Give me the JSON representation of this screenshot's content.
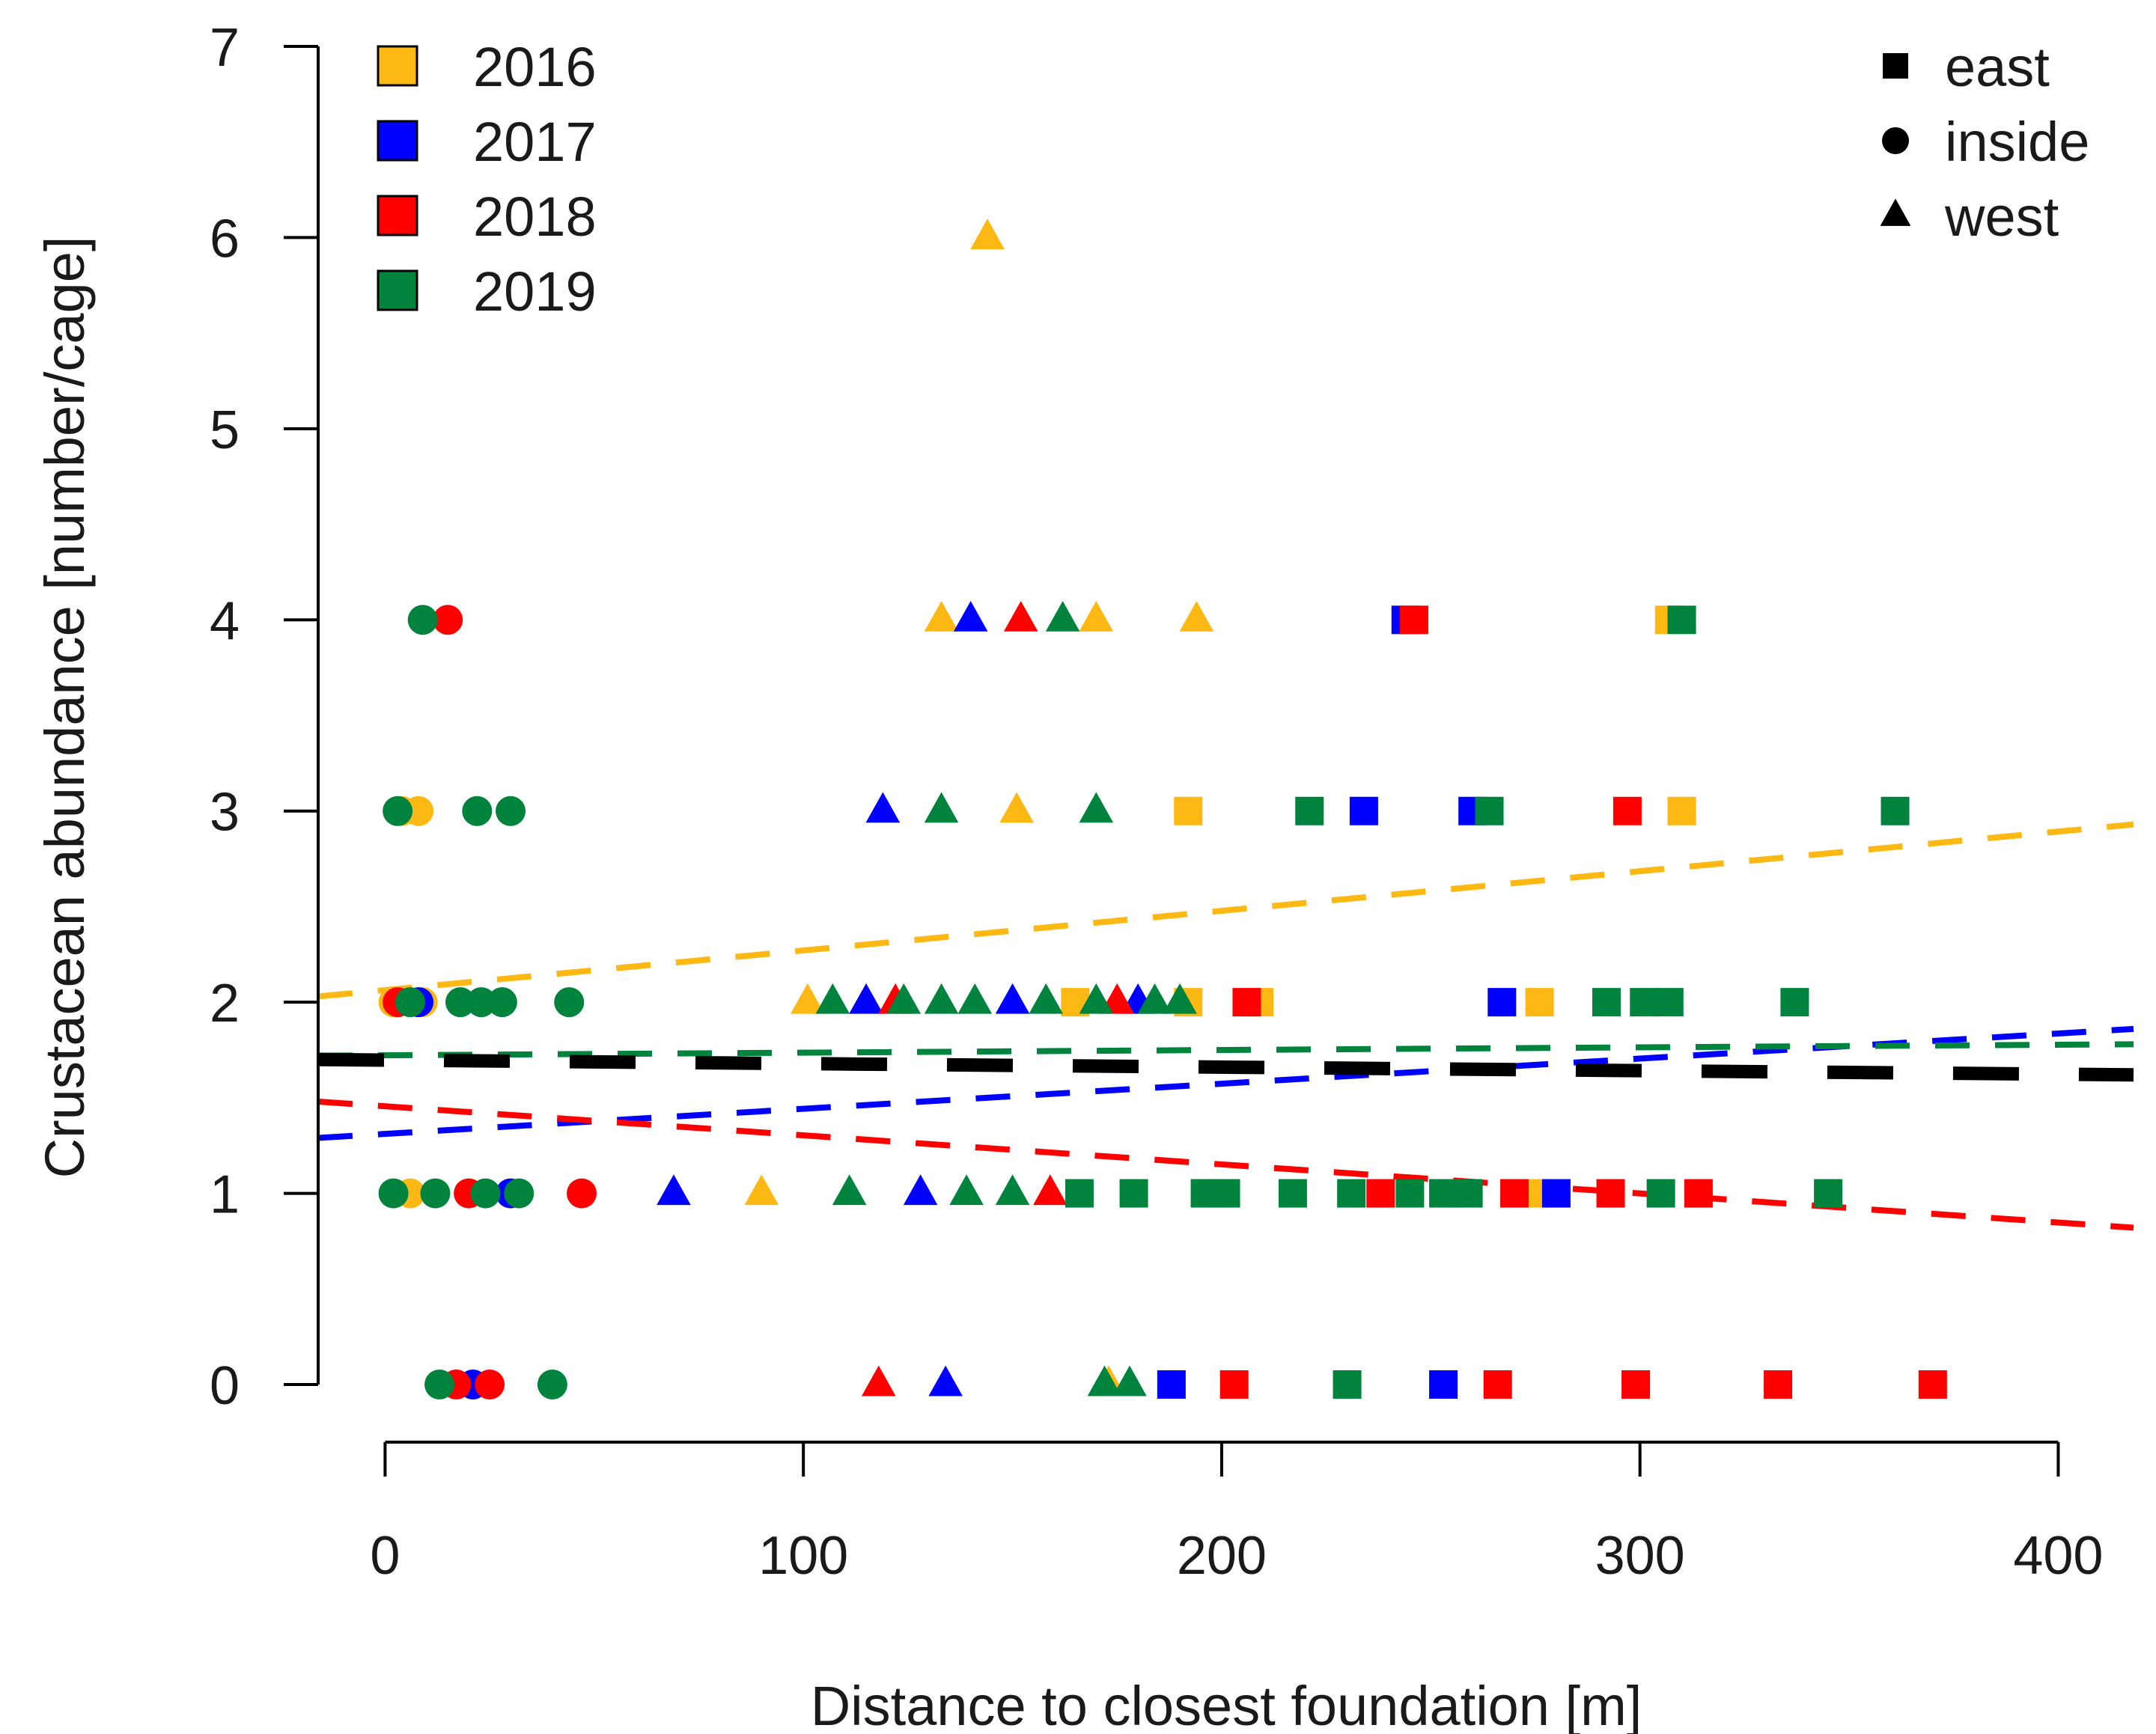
{
  "chart_data": {
    "type": "scatter",
    "xlabel": "Distance to closest foundation [m]",
    "ylabel": "Crustacean abundance [number/cage]",
    "xlim": [
      -16,
      418
    ],
    "ylim": [
      0,
      7
    ],
    "x_ticks": [
      "0",
      "100",
      "200",
      "300",
      "400"
    ],
    "y_ticks": [
      "0",
      "1",
      "2",
      "3",
      "4",
      "5",
      "6",
      "7"
    ],
    "colors": {
      "2016": "#FDB813",
      "2017": "#0000FF",
      "2018": "#FF0000",
      "2019": "#00843D",
      "overall": "#000000"
    },
    "legend_years": [
      {
        "label": "2016",
        "color": "#FDB813"
      },
      {
        "label": "2017",
        "color": "#0000FF"
      },
      {
        "label": "2018",
        "color": "#FF0000"
      },
      {
        "label": "2019",
        "color": "#00843D"
      }
    ],
    "legend_positions": [
      {
        "label": "east",
        "shape": "square"
      },
      {
        "label": "inside",
        "shape": "circle"
      },
      {
        "label": "west",
        "shape": "triangle"
      }
    ],
    "series": [
      {
        "name": "2016",
        "color": "#FDB813",
        "points": [
          {
            "x": 144,
            "y": 6,
            "shape": "triangle"
          },
          {
            "x": 133,
            "y": 4,
            "shape": "triangle"
          },
          {
            "x": 170,
            "y": 4,
            "shape": "triangle"
          },
          {
            "x": 194,
            "y": 4,
            "shape": "triangle"
          },
          {
            "x": 307,
            "y": 4,
            "shape": "square"
          },
          {
            "x": 4,
            "y": 3,
            "shape": "circle"
          },
          {
            "x": 8,
            "y": 3,
            "shape": "circle"
          },
          {
            "x": 151,
            "y": 3,
            "shape": "triangle"
          },
          {
            "x": 192,
            "y": 3,
            "shape": "square"
          },
          {
            "x": 310,
            "y": 3,
            "shape": "square"
          },
          {
            "x": 2,
            "y": 2,
            "shape": "circle"
          },
          {
            "x": 9,
            "y": 2,
            "shape": "circle"
          },
          {
            "x": 101,
            "y": 2,
            "shape": "triangle"
          },
          {
            "x": 165,
            "y": 2,
            "shape": "square"
          },
          {
            "x": 192,
            "y": 2,
            "shape": "square"
          },
          {
            "x": 209,
            "y": 2,
            "shape": "square"
          },
          {
            "x": 276,
            "y": 2,
            "shape": "square"
          },
          {
            "x": 6,
            "y": 1,
            "shape": "circle"
          },
          {
            "x": 90,
            "y": 1,
            "shape": "triangle"
          },
          {
            "x": 276,
            "y": 1,
            "shape": "square"
          },
          {
            "x": 173,
            "y": 0,
            "shape": "triangle"
          }
        ]
      },
      {
        "name": "2017",
        "color": "#0000FF",
        "points": [
          {
            "x": 140,
            "y": 4,
            "shape": "triangle"
          },
          {
            "x": 244,
            "y": 4,
            "shape": "square"
          },
          {
            "x": 119,
            "y": 3,
            "shape": "triangle"
          },
          {
            "x": 234,
            "y": 3,
            "shape": "square"
          },
          {
            "x": 260,
            "y": 3,
            "shape": "square"
          },
          {
            "x": 8,
            "y": 2,
            "shape": "circle"
          },
          {
            "x": 115,
            "y": 2,
            "shape": "triangle"
          },
          {
            "x": 150,
            "y": 2,
            "shape": "triangle"
          },
          {
            "x": 180,
            "y": 2,
            "shape": "triangle"
          },
          {
            "x": 267,
            "y": 2,
            "shape": "square"
          },
          {
            "x": 30,
            "y": 1,
            "shape": "circle"
          },
          {
            "x": 69,
            "y": 1,
            "shape": "triangle"
          },
          {
            "x": 128,
            "y": 1,
            "shape": "triangle"
          },
          {
            "x": 280,
            "y": 1,
            "shape": "square"
          },
          {
            "x": 21,
            "y": 0,
            "shape": "circle"
          },
          {
            "x": 134,
            "y": 0,
            "shape": "triangle"
          },
          {
            "x": 188,
            "y": 0,
            "shape": "square"
          },
          {
            "x": 253,
            "y": 0,
            "shape": "square"
          }
        ]
      },
      {
        "name": "2018",
        "color": "#FF0000",
        "points": [
          {
            "x": 15,
            "y": 4,
            "shape": "circle"
          },
          {
            "x": 152,
            "y": 4,
            "shape": "triangle"
          },
          {
            "x": 246,
            "y": 4,
            "shape": "square"
          },
          {
            "x": 297,
            "y": 3,
            "shape": "square"
          },
          {
            "x": 3,
            "y": 2,
            "shape": "circle"
          },
          {
            "x": 122,
            "y": 2,
            "shape": "triangle"
          },
          {
            "x": 175,
            "y": 2,
            "shape": "triangle"
          },
          {
            "x": 206,
            "y": 2,
            "shape": "square"
          },
          {
            "x": 20,
            "y": 1,
            "shape": "circle"
          },
          {
            "x": 47,
            "y": 1,
            "shape": "circle"
          },
          {
            "x": 159,
            "y": 1,
            "shape": "triangle"
          },
          {
            "x": 238,
            "y": 1,
            "shape": "square"
          },
          {
            "x": 270,
            "y": 1,
            "shape": "square"
          },
          {
            "x": 293,
            "y": 1,
            "shape": "square"
          },
          {
            "x": 314,
            "y": 1,
            "shape": "square"
          },
          {
            "x": 17,
            "y": 0,
            "shape": "circle"
          },
          {
            "x": 25,
            "y": 0,
            "shape": "circle"
          },
          {
            "x": 118,
            "y": 0,
            "shape": "triangle"
          },
          {
            "x": 203,
            "y": 0,
            "shape": "square"
          },
          {
            "x": 266,
            "y": 0,
            "shape": "square"
          },
          {
            "x": 299,
            "y": 0,
            "shape": "square"
          },
          {
            "x": 333,
            "y": 0,
            "shape": "square"
          },
          {
            "x": 370,
            "y": 0,
            "shape": "square"
          }
        ]
      },
      {
        "name": "2019",
        "color": "#00843D",
        "points": [
          {
            "x": 9,
            "y": 4,
            "shape": "circle"
          },
          {
            "x": 162,
            "y": 4,
            "shape": "triangle"
          },
          {
            "x": 310,
            "y": 4,
            "shape": "square"
          },
          {
            "x": 3,
            "y": 3,
            "shape": "circle"
          },
          {
            "x": 22,
            "y": 3,
            "shape": "circle"
          },
          {
            "x": 30,
            "y": 3,
            "shape": "circle"
          },
          {
            "x": 133,
            "y": 3,
            "shape": "triangle"
          },
          {
            "x": 170,
            "y": 3,
            "shape": "triangle"
          },
          {
            "x": 221,
            "y": 3,
            "shape": "square"
          },
          {
            "x": 264,
            "y": 3,
            "shape": "square"
          },
          {
            "x": 361,
            "y": 3,
            "shape": "square"
          },
          {
            "x": 6,
            "y": 2,
            "shape": "circle"
          },
          {
            "x": 18,
            "y": 2,
            "shape": "circle"
          },
          {
            "x": 23,
            "y": 2,
            "shape": "circle"
          },
          {
            "x": 28,
            "y": 2,
            "shape": "circle"
          },
          {
            "x": 44,
            "y": 2,
            "shape": "circle"
          },
          {
            "x": 107,
            "y": 2,
            "shape": "triangle"
          },
          {
            "x": 124,
            "y": 2,
            "shape": "triangle"
          },
          {
            "x": 133,
            "y": 2,
            "shape": "triangle"
          },
          {
            "x": 141,
            "y": 2,
            "shape": "triangle"
          },
          {
            "x": 158,
            "y": 2,
            "shape": "triangle"
          },
          {
            "x": 170,
            "y": 2,
            "shape": "triangle"
          },
          {
            "x": 184,
            "y": 2,
            "shape": "triangle"
          },
          {
            "x": 190,
            "y": 2,
            "shape": "triangle"
          },
          {
            "x": 292,
            "y": 2,
            "shape": "square"
          },
          {
            "x": 301,
            "y": 2,
            "shape": "square"
          },
          {
            "x": 307,
            "y": 2,
            "shape": "square"
          },
          {
            "x": 337,
            "y": 2,
            "shape": "square"
          },
          {
            "x": 2,
            "y": 1,
            "shape": "circle"
          },
          {
            "x": 12,
            "y": 1,
            "shape": "circle"
          },
          {
            "x": 24,
            "y": 1,
            "shape": "circle"
          },
          {
            "x": 32,
            "y": 1,
            "shape": "circle"
          },
          {
            "x": 111,
            "y": 1,
            "shape": "triangle"
          },
          {
            "x": 139,
            "y": 1,
            "shape": "triangle"
          },
          {
            "x": 150,
            "y": 1,
            "shape": "triangle"
          },
          {
            "x": 166,
            "y": 1,
            "shape": "square"
          },
          {
            "x": 179,
            "y": 1,
            "shape": "square"
          },
          {
            "x": 196,
            "y": 1,
            "shape": "square"
          },
          {
            "x": 201,
            "y": 1,
            "shape": "square"
          },
          {
            "x": 217,
            "y": 1,
            "shape": "square"
          },
          {
            "x": 231,
            "y": 1,
            "shape": "square"
          },
          {
            "x": 245,
            "y": 1,
            "shape": "square"
          },
          {
            "x": 253,
            "y": 1,
            "shape": "square"
          },
          {
            "x": 259,
            "y": 1,
            "shape": "square"
          },
          {
            "x": 305,
            "y": 1,
            "shape": "square"
          },
          {
            "x": 345,
            "y": 1,
            "shape": "square"
          },
          {
            "x": 13,
            "y": 0,
            "shape": "circle"
          },
          {
            "x": 40,
            "y": 0,
            "shape": "circle"
          },
          {
            "x": 172,
            "y": 0,
            "shape": "triangle"
          },
          {
            "x": 178,
            "y": 0,
            "shape": "triangle"
          },
          {
            "x": 230,
            "y": 0,
            "shape": "square"
          }
        ]
      }
    ],
    "trend_lines": [
      {
        "group": "2016",
        "color": "#FDB813",
        "x": [
          -16,
          418
        ],
        "y": [
          2.03,
          2.93
        ]
      },
      {
        "group": "2017",
        "color": "#0000FF",
        "x": [
          -16,
          418
        ],
        "y": [
          1.29,
          1.86
        ]
      },
      {
        "group": "2018",
        "color": "#FF0000",
        "x": [
          -16,
          418
        ],
        "y": [
          1.48,
          0.82
        ]
      },
      {
        "group": "2019",
        "color": "#00843D",
        "x": [
          -16,
          418
        ],
        "y": [
          1.72,
          1.78
        ]
      },
      {
        "group": "overall",
        "color": "#000000",
        "x": [
          -16,
          418
        ],
        "y": [
          1.7,
          1.62
        ]
      }
    ]
  }
}
